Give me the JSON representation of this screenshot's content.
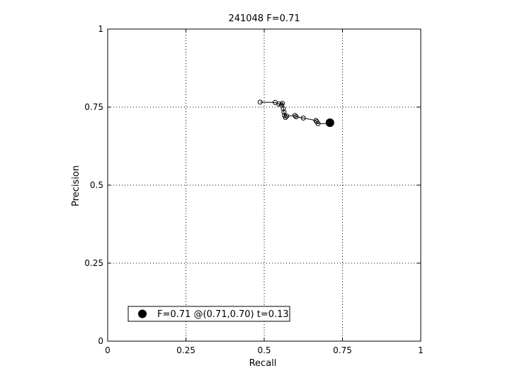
{
  "chart_data": {
    "type": "line",
    "title": "241048 F=0.71",
    "xlabel": "Recall",
    "ylabel": "Precision",
    "xlim": [
      0,
      1
    ],
    "ylim": [
      0,
      1
    ],
    "xticks": [
      0,
      0.25,
      0.5,
      0.75,
      1
    ],
    "yticks": [
      0,
      0.25,
      0.5,
      0.75,
      1
    ],
    "xtick_labels": [
      "0",
      "0.25",
      "0.5",
      "0.75",
      "1"
    ],
    "ytick_labels": [
      "0",
      "0.25",
      "0.5",
      "0.75",
      "1"
    ],
    "grid": true,
    "legend_position": "bottom-left",
    "series": [
      {
        "marker": "open-circle",
        "x": [
          0.487,
          0.535,
          0.547,
          0.555,
          0.558,
          0.561,
          0.563,
          0.565,
          0.568,
          0.572,
          0.598,
          0.602,
          0.625,
          0.665,
          0.668,
          0.672,
          0.71
        ],
        "y": [
          0.766,
          0.765,
          0.76,
          0.757,
          0.762,
          0.745,
          0.734,
          0.723,
          0.717,
          0.721,
          0.723,
          0.719,
          0.715,
          0.707,
          0.703,
          0.697,
          0.697
        ]
      }
    ],
    "best_point": {
      "x": 0.71,
      "y": 0.7,
      "marker": "filled-circle",
      "label": "F=0.71 @(0.71,0.70) t=0.13"
    }
  }
}
